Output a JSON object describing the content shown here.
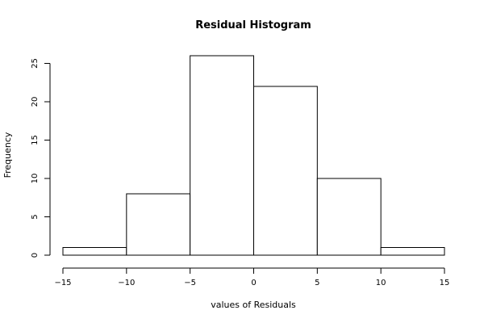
{
  "chart_data": {
    "type": "bar",
    "title": "Residual Histogram",
    "xlabel": "values of Residuals",
    "ylabel": "Frequency",
    "bins": [
      {
        "start": -15,
        "end": -10,
        "count": 1
      },
      {
        "start": -10,
        "end": -5,
        "count": 8
      },
      {
        "start": -5,
        "end": 0,
        "count": 26
      },
      {
        "start": 0,
        "end": 5,
        "count": 22
      },
      {
        "start": 5,
        "end": 10,
        "count": 10
      },
      {
        "start": 10,
        "end": 15,
        "count": 1
      }
    ],
    "xlim": [
      -15,
      15
    ],
    "ylim": [
      0,
      26
    ],
    "xticks": [
      -15,
      -10,
      -5,
      0,
      5,
      10,
      15
    ],
    "yticks": [
      0,
      5,
      10,
      15,
      20,
      25
    ],
    "grid": false,
    "colors": {
      "bar_fill": "#ffffff",
      "bar_stroke": "#000000"
    }
  }
}
